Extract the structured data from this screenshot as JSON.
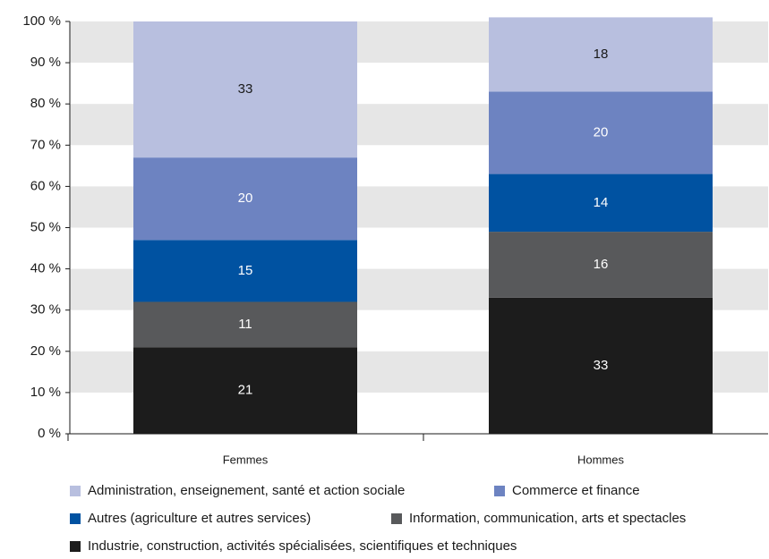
{
  "chart_data": {
    "type": "stacked-bar",
    "categories": [
      "Femmes",
      "Hommes"
    ],
    "series": [
      {
        "name": "Industrie, construction, activités spécialisées, scientifiques et techniques",
        "color": "#1c1c1c",
        "values": [
          21,
          33
        ]
      },
      {
        "name": "Information, communication, arts et spectacles",
        "color": "#58595b",
        "values": [
          11,
          16
        ]
      },
      {
        "name": "Autres (agriculture et autres services)",
        "color": "#0052a1",
        "values": [
          15,
          14
        ]
      },
      {
        "name": "Commerce et finance",
        "color": "#6d83c1",
        "values": [
          20,
          20
        ]
      },
      {
        "name": "Administration, enseignement, santé et action sociale",
        "color": "#b8bfdf",
        "values": [
          33,
          18
        ]
      }
    ],
    "ylim": [
      0,
      100
    ],
    "yticks": [
      {
        "value": 0,
        "label": "0 %"
      },
      {
        "value": 10,
        "label": "10 %"
      },
      {
        "value": 20,
        "label": "20 %"
      },
      {
        "value": 30,
        "label": "30 %"
      },
      {
        "value": 40,
        "label": "40 %"
      },
      {
        "value": 50,
        "label": "50 %"
      },
      {
        "value": 60,
        "label": "60 %"
      },
      {
        "value": 70,
        "label": "70 %"
      },
      {
        "value": 80,
        "label": "80 %"
      },
      {
        "value": 90,
        "label": "90 %"
      },
      {
        "value": 100,
        "label": "100 %"
      }
    ],
    "grid": true
  }
}
